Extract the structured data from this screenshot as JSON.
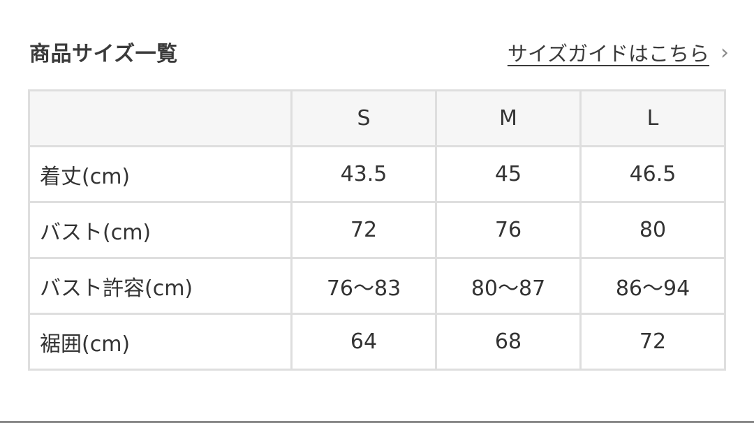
{
  "title": "商品サイズ一覧",
  "size_guide_link": "サイズガイドはこちら",
  "icons": {
    "chevron": "chevron-right-icon"
  },
  "table": {
    "sizes": [
      "S",
      "M",
      "L"
    ],
    "rows": [
      {
        "label": "着丈(cm)",
        "values": [
          "43.5",
          "45",
          "46.5"
        ]
      },
      {
        "label": "バスト(cm)",
        "values": [
          "72",
          "76",
          "80"
        ]
      },
      {
        "label": "バスト許容(cm)",
        "values": [
          "76〜83",
          "80〜87",
          "86〜94"
        ]
      },
      {
        "label": "裾囲(cm)",
        "values": [
          "64",
          "68",
          "72"
        ]
      }
    ]
  }
}
